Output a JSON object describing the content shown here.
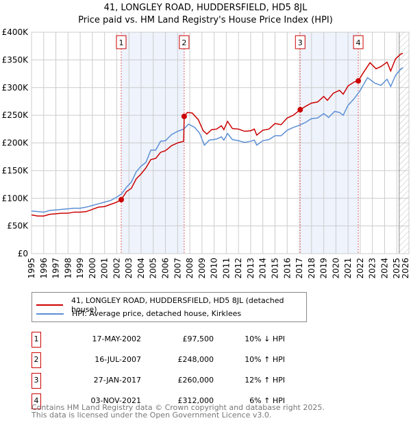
{
  "header": {
    "title": "41, LONGLEY ROAD, HUDDERSFIELD, HD5 8JL",
    "subtitle": "Price paid vs. HM Land Registry's House Price Index (HPI)"
  },
  "colors": {
    "property": "#cc0000",
    "hpi": "#5b8fd6",
    "shade": "#eef3fc",
    "grid": "#cccccc"
  },
  "chart_data": {
    "type": "line",
    "ylim": [
      0,
      400000
    ],
    "xlim": [
      1995,
      2026
    ],
    "yticks": [
      {
        "v": 0,
        "label": "£0"
      },
      {
        "v": 50000,
        "label": "£50K"
      },
      {
        "v": 100000,
        "label": "£100K"
      },
      {
        "v": 150000,
        "label": "£150K"
      },
      {
        "v": 200000,
        "label": "£200K"
      },
      {
        "v": 250000,
        "label": "£250K"
      },
      {
        "v": 300000,
        "label": "£300K"
      },
      {
        "v": 350000,
        "label": "£350K"
      },
      {
        "v": 400000,
        "label": "£400K"
      }
    ],
    "xticks": [
      "1995",
      "1996",
      "1997",
      "1998",
      "1999",
      "2000",
      "2001",
      "2002",
      "2003",
      "2004",
      "2005",
      "2006",
      "2007",
      "2008",
      "2009",
      "2010",
      "2011",
      "2012",
      "2013",
      "2014",
      "2015",
      "2016",
      "2017",
      "2018",
      "2019",
      "2020",
      "2021",
      "2022",
      "2023",
      "2024",
      "2025",
      "2026"
    ],
    "shaded_ranges": [
      [
        2002.37,
        2007.54
      ],
      [
        2017.07,
        2021.84
      ]
    ],
    "forecast_from": 2025.2,
    "series": [
      {
        "name": "41, LONGLEY ROAD, HUDDERSFIELD, HD5 8JL (detached house)",
        "color": "#cc0000",
        "points": [
          [
            1995,
            70000
          ],
          [
            1995.5,
            68000
          ],
          [
            1996,
            68000
          ],
          [
            1996.5,
            71000
          ],
          [
            1997,
            72000
          ],
          [
            1997.5,
            73000
          ],
          [
            1998,
            73000
          ],
          [
            1998.5,
            75000
          ],
          [
            1999,
            75000
          ],
          [
            1999.5,
            76000
          ],
          [
            2000,
            80000
          ],
          [
            2000.5,
            84000
          ],
          [
            2001,
            85000
          ],
          [
            2001.5,
            89000
          ],
          [
            2002,
            93000
          ],
          [
            2002.37,
            97500
          ],
          [
            2002.8,
            112000
          ],
          [
            2003.2,
            118000
          ],
          [
            2003.6,
            135000
          ],
          [
            2004,
            144000
          ],
          [
            2004.4,
            155000
          ],
          [
            2004.8,
            170000
          ],
          [
            2005.2,
            172000
          ],
          [
            2005.6,
            183000
          ],
          [
            2006,
            186000
          ],
          [
            2006.5,
            195000
          ],
          [
            2007,
            200000
          ],
          [
            2007.5,
            203000
          ],
          [
            2007.54,
            248000
          ],
          [
            2007.8,
            255000
          ],
          [
            2008.2,
            254000
          ],
          [
            2008.7,
            242000
          ],
          [
            2009.1,
            222000
          ],
          [
            2009.4,
            216000
          ],
          [
            2009.8,
            224000
          ],
          [
            2010.2,
            225000
          ],
          [
            2010.6,
            231000
          ],
          [
            2010.8,
            224000
          ],
          [
            2011.1,
            239000
          ],
          [
            2011.5,
            226000
          ],
          [
            2012,
            225000
          ],
          [
            2012.5,
            221000
          ],
          [
            2013,
            222000
          ],
          [
            2013.3,
            225000
          ],
          [
            2013.5,
            214000
          ],
          [
            2014,
            223000
          ],
          [
            2014.5,
            225000
          ],
          [
            2015,
            235000
          ],
          [
            2015.5,
            233000
          ],
          [
            2016,
            245000
          ],
          [
            2016.5,
            250000
          ],
          [
            2017.07,
            260000
          ],
          [
            2017.5,
            266000
          ],
          [
            2018,
            272000
          ],
          [
            2018.5,
            274000
          ],
          [
            2019,
            284000
          ],
          [
            2019.3,
            277000
          ],
          [
            2019.8,
            290000
          ],
          [
            2020.3,
            295000
          ],
          [
            2020.6,
            288000
          ],
          [
            2021,
            303000
          ],
          [
            2021.5,
            310000
          ],
          [
            2021.84,
            312000
          ],
          [
            2022.2,
            325000
          ],
          [
            2022.8,
            345000
          ],
          [
            2023.3,
            334000
          ],
          [
            2023.7,
            338000
          ],
          [
            2024.2,
            346000
          ],
          [
            2024.5,
            330000
          ],
          [
            2024.9,
            352000
          ],
          [
            2025.3,
            360000
          ],
          [
            2025.5,
            362000
          ]
        ]
      },
      {
        "name": "HPI: Average price, detached house, Kirklees",
        "color": "#5b8fd6",
        "points": [
          [
            1995,
            77000
          ],
          [
            1995.5,
            76000
          ],
          [
            1996,
            75000
          ],
          [
            1996.5,
            78000
          ],
          [
            1997,
            79000
          ],
          [
            1997.5,
            80000
          ],
          [
            1998,
            81000
          ],
          [
            1998.5,
            82000
          ],
          [
            1999,
            82000
          ],
          [
            1999.5,
            84000
          ],
          [
            2000,
            87000
          ],
          [
            2000.5,
            90000
          ],
          [
            2001,
            93000
          ],
          [
            2001.5,
            96000
          ],
          [
            2002,
            102000
          ],
          [
            2002.4,
            108000
          ],
          [
            2002.8,
            120000
          ],
          [
            2003.2,
            129000
          ],
          [
            2003.6,
            148000
          ],
          [
            2004,
            158000
          ],
          [
            2004.4,
            165000
          ],
          [
            2004.8,
            187000
          ],
          [
            2005.2,
            187000
          ],
          [
            2005.6,
            203000
          ],
          [
            2006,
            204000
          ],
          [
            2006.5,
            215000
          ],
          [
            2007,
            221000
          ],
          [
            2007.5,
            225000
          ],
          [
            2007.9,
            234000
          ],
          [
            2008.4,
            228000
          ],
          [
            2008.8,
            218000
          ],
          [
            2009.2,
            196000
          ],
          [
            2009.6,
            205000
          ],
          [
            2010.2,
            207000
          ],
          [
            2010.6,
            211000
          ],
          [
            2010.8,
            205000
          ],
          [
            2011.1,
            217000
          ],
          [
            2011.5,
            206000
          ],
          [
            2012,
            204000
          ],
          [
            2012.5,
            201000
          ],
          [
            2013,
            203000
          ],
          [
            2013.3,
            205000
          ],
          [
            2013.5,
            196000
          ],
          [
            2014,
            204000
          ],
          [
            2014.5,
            206000
          ],
          [
            2015,
            213000
          ],
          [
            2015.5,
            213000
          ],
          [
            2016,
            223000
          ],
          [
            2016.5,
            228000
          ],
          [
            2017,
            232000
          ],
          [
            2017.5,
            237000
          ],
          [
            2018,
            244000
          ],
          [
            2018.5,
            245000
          ],
          [
            2019,
            253000
          ],
          [
            2019.4,
            246000
          ],
          [
            2019.9,
            257000
          ],
          [
            2020.3,
            255000
          ],
          [
            2020.6,
            250000
          ],
          [
            2021,
            268000
          ],
          [
            2021.5,
            280000
          ],
          [
            2022,
            295000
          ],
          [
            2022.6,
            318000
          ],
          [
            2023.2,
            308000
          ],
          [
            2023.7,
            304000
          ],
          [
            2024.2,
            315000
          ],
          [
            2024.5,
            302000
          ],
          [
            2024.9,
            322000
          ],
          [
            2025.3,
            333000
          ],
          [
            2025.5,
            336000
          ]
        ]
      }
    ],
    "sales": [
      {
        "n": "1",
        "x": 2002.37,
        "y": 97500
      },
      {
        "n": "2",
        "x": 2007.54,
        "y": 248000
      },
      {
        "n": "3",
        "x": 2017.07,
        "y": 260000
      },
      {
        "n": "4",
        "x": 2021.84,
        "y": 312000
      }
    ]
  },
  "legend": {
    "property": "41, LONGLEY ROAD, HUDDERSFIELD, HD5 8JL (detached house)",
    "hpi": "HPI: Average price, detached house, Kirklees"
  },
  "transactions": [
    {
      "n": "1",
      "date": "17-MAY-2002",
      "price": "£97,500",
      "hpi": "10% ↓ HPI"
    },
    {
      "n": "2",
      "date": "16-JUL-2007",
      "price": "£248,000",
      "hpi": "10% ↑ HPI"
    },
    {
      "n": "3",
      "date": "27-JAN-2017",
      "price": "£260,000",
      "hpi": "12% ↑ HPI"
    },
    {
      "n": "4",
      "date": "03-NOV-2021",
      "price": "£312,000",
      "hpi": "6% ↑ HPI"
    }
  ],
  "footer": {
    "line1": "Contains HM Land Registry data © Crown copyright and database right 2025.",
    "line2": "This data is licensed under the Open Government Licence v3.0."
  }
}
